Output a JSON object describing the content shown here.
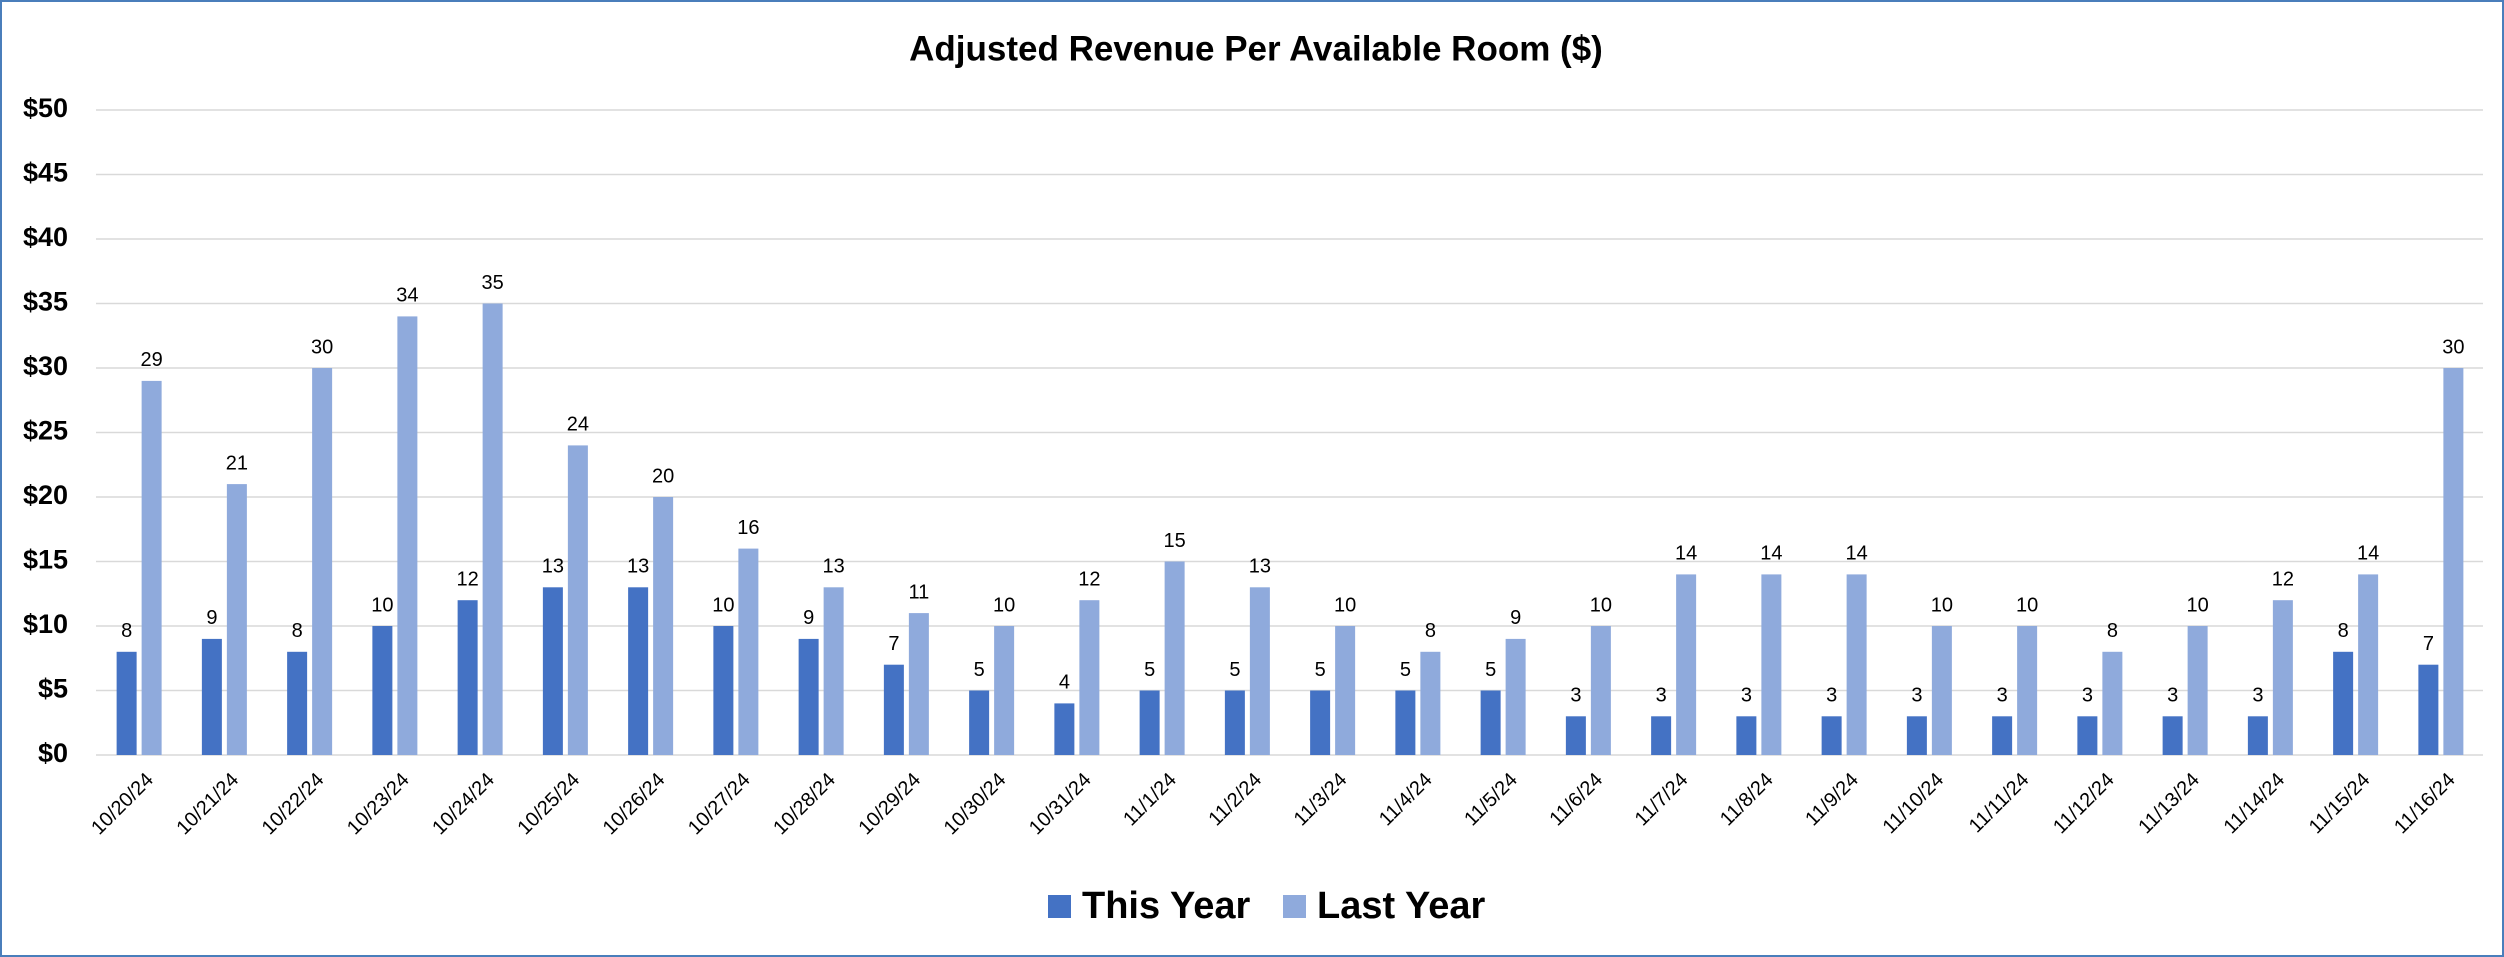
{
  "chart_data": {
    "type": "bar",
    "title": "Adjusted Revenue Per Available Room ($)",
    "categories": [
      "10/20/24",
      "10/21/24",
      "10/22/24",
      "10/23/24",
      "10/24/24",
      "10/25/24",
      "10/26/24",
      "10/27/24",
      "10/28/24",
      "10/29/24",
      "10/30/24",
      "10/31/24",
      "11/1/24",
      "11/2/24",
      "11/3/24",
      "11/4/24",
      "11/5/24",
      "11/6/24",
      "11/7/24",
      "11/8/24",
      "11/9/24",
      "11/10/24",
      "11/11/24",
      "11/12/24",
      "11/13/24",
      "11/14/24",
      "11/15/24",
      "11/16/24"
    ],
    "series": [
      {
        "name": "This Year",
        "color": "#4472c4",
        "values": [
          8,
          9,
          8,
          10,
          12,
          13,
          13,
          10,
          9,
          7,
          5,
          4,
          5,
          5,
          5,
          5,
          5,
          3,
          3,
          3,
          3,
          3,
          3,
          3,
          3,
          3,
          8,
          7
        ]
      },
      {
        "name": "Last Year",
        "color": "#8faadc",
        "values": [
          29,
          21,
          30,
          34,
          35,
          24,
          20,
          16,
          13,
          11,
          10,
          12,
          15,
          13,
          10,
          8,
          9,
          10,
          14,
          14,
          14,
          10,
          10,
          8,
          10,
          12,
          14,
          30
        ]
      }
    ],
    "ylim": [
      0,
      50
    ],
    "yticks": [
      {
        "value": 0,
        "label": "$0"
      },
      {
        "value": 5,
        "label": "$5"
      },
      {
        "value": 10,
        "label": "$10"
      },
      {
        "value": 15,
        "label": "$15"
      },
      {
        "value": 20,
        "label": "$20"
      },
      {
        "value": 25,
        "label": "$25"
      },
      {
        "value": 30,
        "label": "$30"
      },
      {
        "value": 35,
        "label": "$35"
      },
      {
        "value": 40,
        "label": "$40"
      },
      {
        "value": 45,
        "label": "$45"
      },
      {
        "value": 50,
        "label": "$50"
      }
    ],
    "grid": true,
    "legend": "bottom"
  }
}
